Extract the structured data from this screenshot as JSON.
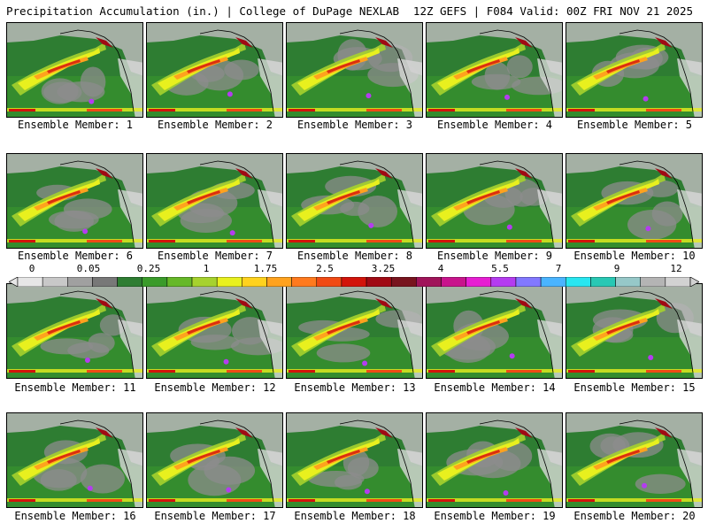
{
  "header": {
    "left": "Precipitation Accumulation (in.) | College of DuPage NEXLAB",
    "right": "12Z GEFS | F084 Valid: 00Z FRI NOV 21 2025"
  },
  "members": [
    "Ensemble Member: 1",
    "Ensemble Member: 2",
    "Ensemble Member: 3",
    "Ensemble Member: 4",
    "Ensemble Member: 5",
    "Ensemble Member: 6",
    "Ensemble Member: 7",
    "Ensemble Member: 8",
    "Ensemble Member: 9",
    "Ensemble Member: 10",
    "Ensemble Member: 11",
    "Ensemble Member: 12",
    "Ensemble Member: 13",
    "Ensemble Member: 14",
    "Ensemble Member: 15",
    "Ensemble Member: 16",
    "Ensemble Member: 17",
    "Ensemble Member: 18",
    "Ensemble Member: 19",
    "Ensemble Member: 20"
  ],
  "colorbar": {
    "labels": [
      "0",
      "0.05",
      "0.25",
      "1",
      "1.75",
      "2.5",
      "3.25",
      "4",
      "5.5",
      "7",
      "9",
      "12"
    ],
    "colors": [
      "#e6e6e6",
      "#c8c8c8",
      "#a0a0a0",
      "#787878",
      "#2e7d32",
      "#3a9b2a",
      "#66b828",
      "#a6d22e",
      "#e8f01e",
      "#ffd21e",
      "#ffa21e",
      "#ff7a1e",
      "#f04a14",
      "#d2140a",
      "#a00a14",
      "#78141e",
      "#a0145a",
      "#c8148c",
      "#e61ed2",
      "#b43cf0",
      "#8278ff",
      "#4ab4ff",
      "#28e6f0",
      "#28c8b4",
      "#96c8c8",
      "#b4b4b4",
      "#d2d2d2"
    ]
  }
}
